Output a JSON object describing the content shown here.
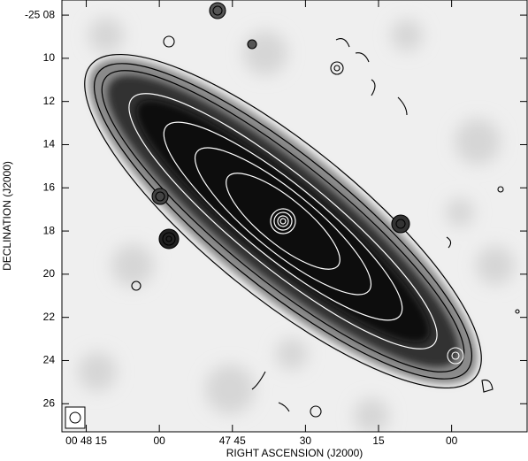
{
  "chart_data": {
    "type": "image",
    "xlabel": "RIGHT ASCENSION (J2000)",
    "ylabel": "DECLINATION (J2000)",
    "xlim": [
      80,
      -15.5
    ],
    "xticks": [
      {
        "value": 75,
        "label": "00 48 15"
      },
      {
        "value": 60,
        "label": "00"
      },
      {
        "value": 45,
        "label": "47 45"
      },
      30,
      15,
      {
        "value": 0,
        "label": "00"
      }
    ],
    "ylim": [
      27.3,
      7.3
    ],
    "yticks": [
      {
        "value": 8,
        "label": "-25 08"
      },
      10,
      12,
      14,
      16,
      18,
      20,
      22,
      24,
      26
    ]
  }
}
